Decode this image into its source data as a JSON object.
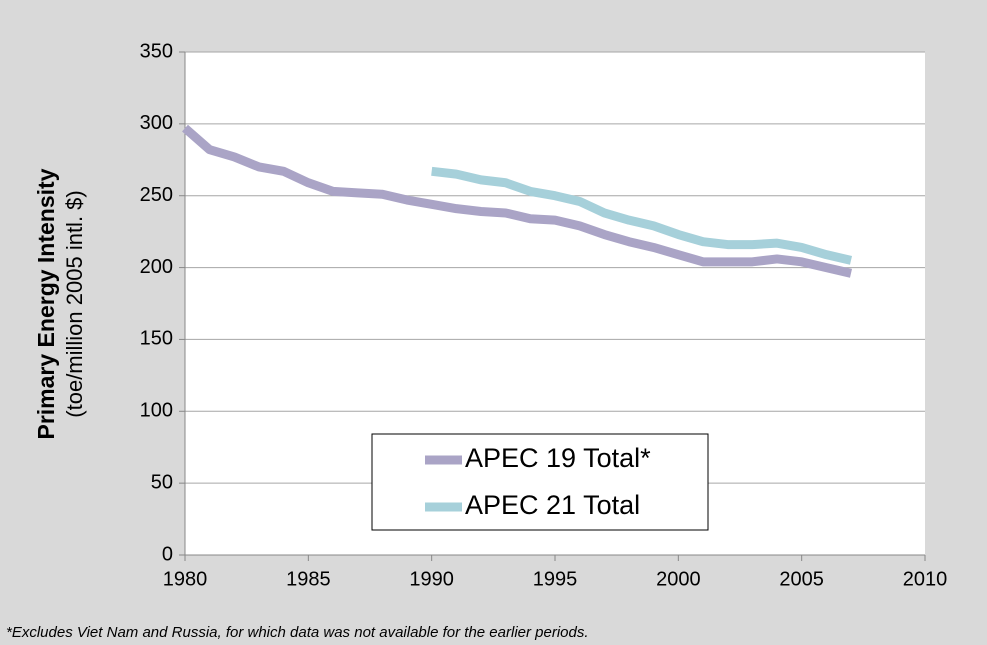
{
  "chart_data": {
    "type": "line",
    "y_label": "Primary Energy Intensity",
    "y_sublabel": "(toe/million 2005 intl. $)",
    "footnote": "*Excludes Viet Nam and Russia, for which data was not available for the earlier periods.",
    "x": [
      1980,
      1981,
      1982,
      1983,
      1984,
      1985,
      1986,
      1987,
      1988,
      1989,
      1990,
      1991,
      1992,
      1993,
      1994,
      1995,
      1996,
      1997,
      1998,
      1999,
      2000,
      2001,
      2002,
      2003,
      2004,
      2005,
      2006,
      2007
    ],
    "series": [
      {
        "name": "APEC 19 Total*",
        "color": "#aaa4c6",
        "values": [
          297,
          282,
          277,
          270,
          267,
          259,
          253,
          252,
          251,
          247,
          244,
          241,
          239,
          238,
          234,
          233,
          229,
          223,
          218,
          214,
          209,
          204,
          204,
          204,
          206,
          204,
          200,
          196
        ]
      },
      {
        "name": "APEC 21 Total",
        "color": "#a6d0da",
        "values": [
          null,
          null,
          null,
          null,
          null,
          null,
          null,
          null,
          null,
          null,
          267,
          265,
          261,
          259,
          253,
          250,
          246,
          238,
          233,
          229,
          223,
          218,
          216,
          216,
          217,
          214,
          209,
          205
        ]
      }
    ],
    "xlim": [
      1980,
      2010
    ],
    "xticks": [
      1980,
      1985,
      1990,
      1995,
      2000,
      2005,
      2010
    ],
    "ylim": [
      0,
      350
    ],
    "yticks": [
      0,
      50,
      100,
      150,
      200,
      250,
      300,
      350
    ],
    "grid": true
  }
}
